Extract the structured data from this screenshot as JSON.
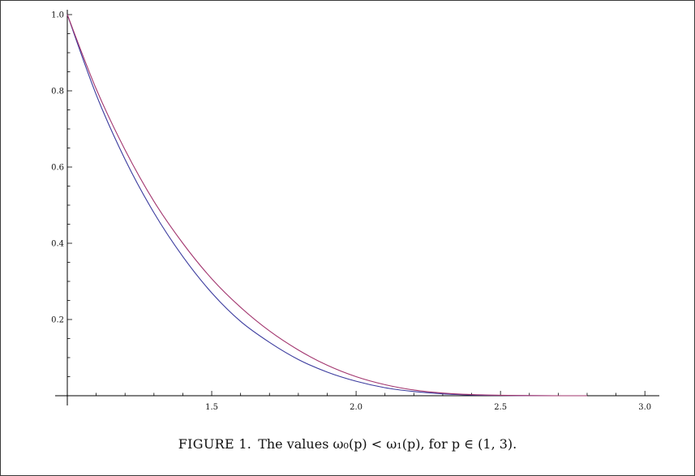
{
  "caption": {
    "label": "FIGURE 1.",
    "text": "The values ω₀(p) < ω₁(p), for p ∈ (1, 3)."
  },
  "chart_data": {
    "type": "line",
    "title": "",
    "xlabel": "",
    "ylabel": "",
    "xlim": [
      1.0,
      3.05
    ],
    "ylim": [
      0.0,
      1.0
    ],
    "x_ticks": [
      1.5,
      2.0,
      2.5,
      3.0
    ],
    "x_tick_labels": [
      "1.5",
      "2.0",
      "2.5",
      "3.0"
    ],
    "y_ticks": [
      0.2,
      0.4,
      0.6,
      0.8,
      1.0
    ],
    "y_tick_labels": [
      "0.2",
      "0.4",
      "0.6",
      "0.8",
      "1.0"
    ],
    "grid": false,
    "x": [
      1.0,
      1.1,
      1.2,
      1.3,
      1.4,
      1.5,
      1.6,
      1.7,
      1.8,
      1.9,
      2.0,
      2.1,
      2.2,
      2.3,
      2.4,
      2.5,
      2.6,
      2.7,
      2.8
    ],
    "series": [
      {
        "color": "#3b3b9e",
        "values": [
          1.0,
          0.79,
          0.62,
          0.48,
          0.365,
          0.27,
          0.195,
          0.14,
          0.095,
          0.062,
          0.038,
          0.021,
          0.011,
          0.005,
          0.002,
          0.0008,
          0.0002,
          0.0,
          0.0
        ]
      },
      {
        "color": "#a2356e",
        "values": [
          1.0,
          0.805,
          0.645,
          0.51,
          0.4,
          0.307,
          0.232,
          0.17,
          0.12,
          0.08,
          0.05,
          0.029,
          0.015,
          0.007,
          0.003,
          0.0012,
          0.0003,
          0.0,
          0.0
        ]
      }
    ]
  }
}
